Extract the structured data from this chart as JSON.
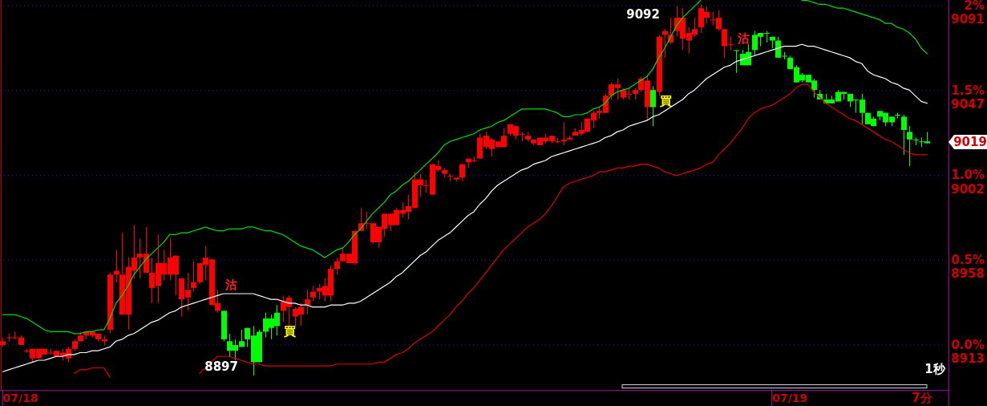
{
  "chart_data": {
    "type": "candlestick",
    "categories": [
      null,
      null,
      null,
      "07/18",
      null,
      null,
      null,
      null,
      null,
      null,
      null,
      null,
      null,
      null,
      null,
      null,
      null,
      null,
      null,
      null,
      null,
      null,
      null,
      null,
      null,
      null,
      null,
      null,
      null,
      null,
      null,
      null,
      null,
      null,
      null,
      null,
      null,
      null,
      null,
      null,
      null,
      null,
      null,
      null,
      null,
      null,
      null,
      null,
      null,
      null,
      null,
      null,
      null,
      null,
      null,
      null,
      null,
      null,
      null,
      null,
      null,
      null,
      null,
      null,
      null,
      null,
      null,
      null,
      null,
      null,
      null,
      null,
      null,
      null,
      null,
      null,
      null,
      null,
      null,
      null,
      null,
      null,
      null,
      null,
      null,
      null,
      null,
      null,
      null,
      null,
      null,
      null,
      null,
      null,
      null,
      null,
      null,
      null,
      null,
      null,
      null,
      null,
      null,
      null,
      null,
      null,
      null,
      null,
      null,
      null,
      null,
      null,
      null,
      null,
      null,
      null,
      null,
      null,
      null,
      null,
      null,
      null,
      null,
      null,
      null,
      null,
      null,
      null,
      null,
      null,
      null,
      null,
      "07/19",
      null,
      null,
      null,
      null,
      null,
      null,
      null,
      null,
      null,
      null,
      null,
      null,
      null,
      null,
      null,
      null,
      null,
      null,
      null,
      null,
      null,
      null,
      null
    ],
    "ohlc": [
      [
        8913,
        8917,
        8912,
        8915
      ],
      [
        8917,
        8919,
        8915,
        8917
      ],
      [
        8917,
        8920,
        8916,
        8917
      ],
      [
        8913,
        8918,
        8913,
        8917
      ],
      [
        8910,
        8911,
        8909,
        8910
      ],
      [
        8906,
        8911,
        8904,
        8911
      ],
      [
        8906,
        8911,
        8906,
        8911
      ],
      [
        8908,
        8911,
        8908,
        8911
      ],
      [
        8909,
        8911,
        8908,
        8909
      ],
      [
        8907,
        8910,
        8907,
        8910
      ],
      [
        8907,
        8911,
        8905,
        8909
      ],
      [
        8906,
        8912,
        8904,
        8911
      ],
      [
        8911,
        8916,
        8910,
        8915
      ],
      [
        8915,
        8920,
        8915,
        8918
      ],
      [
        8918,
        8920,
        8916,
        8920
      ],
      [
        8918,
        8920,
        8917,
        8920
      ],
      [
        8916,
        8919,
        8915,
        8919
      ],
      [
        8915,
        8918,
        8913,
        8916
      ],
      [
        8921,
        8951,
        8919,
        8950
      ],
      [
        8950,
        8963,
        8946,
        8952
      ],
      [
        8929,
        8972,
        8929,
        8950
      ],
      [
        8929,
        8959,
        8921,
        8954
      ],
      [
        8952,
        8976,
        8948,
        8959
      ],
      [
        8959,
        8969,
        8948,
        8961
      ],
      [
        8951,
        8975,
        8951,
        8961
      ],
      [
        8943,
        8959,
        8935,
        8951
      ],
      [
        8944,
        8971,
        8935,
        8956
      ],
      [
        8950,
        8963,
        8947,
        8956
      ],
      [
        8950,
        8969,
        8947,
        8959
      ],
      [
        8950,
        8960,
        8939,
        8960
      ],
      [
        8937,
        8948,
        8928,
        8948
      ],
      [
        8938,
        8951,
        8931,
        8942
      ],
      [
        8943,
        8957,
        8941,
        8946
      ],
      [
        8946,
        8956,
        8945,
        8956
      ],
      [
        8955,
        8965,
        8947,
        8959
      ],
      [
        8934,
        8958,
        8934,
        8958
      ],
      [
        8931,
        8942,
        8930,
        8935
      ],
      [
        8931,
        8931,
        8915,
        8916
      ],
      [
        8915,
        8919,
        8907,
        8910
      ],
      [
        8913,
        8916,
        8905,
        8910
      ],
      [
        8915,
        8921,
        8912,
        8912
      ],
      [
        8922,
        8922,
        8912,
        8916
      ],
      [
        8918,
        8923,
        8897,
        8904
      ],
      [
        8920,
        8921,
        8904,
        8904
      ],
      [
        8927,
        8930,
        8917,
        8920
      ],
      [
        8927,
        8929,
        8916,
        8922
      ],
      [
        8930,
        8934,
        8918,
        8923
      ],
      [
        8931,
        8939,
        8925,
        8936
      ],
      [
        8933,
        8939,
        8923,
        8938
      ],
      [
        8928,
        8933,
        8923,
        8932
      ],
      [
        8929,
        8935,
        8923,
        8933
      ],
      [
        8934,
        8942,
        8929,
        8937
      ],
      [
        8938,
        8944,
        8936,
        8941
      ],
      [
        8941,
        8945,
        8937,
        8943
      ],
      [
        8939,
        8948,
        8936,
        8944
      ],
      [
        8939,
        8955,
        8936,
        8953
      ],
      [
        8953,
        8959,
        8950,
        8957
      ],
      [
        8957,
        8964,
        8957,
        8961
      ],
      [
        8956,
        8961,
        8956,
        8961
      ],
      [
        8956,
        8973,
        8955,
        8973
      ],
      [
        8973,
        8985,
        8973,
        8977
      ],
      [
        8977,
        8983,
        8974,
        8977
      ],
      [
        8967,
        8977,
        8966,
        8977
      ],
      [
        8967,
        8975,
        8964,
        8975
      ],
      [
        8974,
        8982,
        8970,
        8982
      ],
      [
        8976,
        8982,
        8973,
        8982
      ],
      [
        8976,
        8985,
        8976,
        8984
      ],
      [
        8982,
        8988,
        8980,
        8984
      ],
      [
        8983,
        8992,
        8979,
        8986
      ],
      [
        8985,
        9004,
        8985,
        9000
      ],
      [
        8997,
        9003,
        8991,
        9000
      ],
      [
        8997,
        9000,
        8993,
        8997
      ],
      [
        8992,
        9008,
        8992,
        9008
      ],
      [
        9005,
        9010,
        9004,
        9007
      ],
      [
        9003,
        9006,
        9001,
        9005
      ],
      [
        9002,
        9003,
        8999,
        9002
      ],
      [
        9000,
        9001,
        8999,
        9001
      ],
      [
        9001,
        9008,
        8999,
        9008
      ],
      [
        9009,
        9011,
        9006,
        9011
      ],
      [
        9010,
        9012,
        9009,
        9010
      ],
      [
        9011,
        9024,
        9011,
        9022
      ],
      [
        9017,
        9025,
        9016,
        9023
      ],
      [
        9016,
        9022,
        9012,
        9021
      ],
      [
        9017,
        9020,
        9017,
        9020
      ],
      [
        9017,
        9027,
        9017,
        9023
      ],
      [
        9024,
        9029,
        9023,
        9029
      ],
      [
        9023,
        9028,
        9021,
        9028
      ],
      [
        9024,
        9025,
        9020,
        9024
      ],
      [
        9021,
        9025,
        9020,
        9023
      ],
      [
        9019,
        9021,
        9018,
        9021
      ],
      [
        9018,
        9022,
        9018,
        9022
      ],
      [
        9020,
        9024,
        9019,
        9022
      ],
      [
        9020,
        9023,
        9019,
        9023
      ],
      [
        9020,
        9022,
        9019,
        9020
      ],
      [
        9020,
        9030,
        9018,
        9021
      ],
      [
        9021,
        9023,
        9021,
        9022
      ],
      [
        9023,
        9027,
        9023,
        9025
      ],
      [
        9024,
        9030,
        9023,
        9026
      ],
      [
        9025,
        9032,
        9025,
        9032
      ],
      [
        9031,
        9036,
        9027,
        9035
      ],
      [
        9035,
        9038,
        9032,
        9036
      ],
      [
        9035,
        9045,
        9035,
        9044
      ],
      [
        9044,
        9051,
        9042,
        9050
      ],
      [
        9048,
        9053,
        9042,
        9050
      ],
      [
        9043,
        9048,
        9042,
        9047
      ],
      [
        9045,
        9048,
        9042,
        9045
      ],
      [
        9045,
        9048,
        9042,
        9047
      ],
      [
        9047,
        9054,
        9046,
        9053
      ],
      [
        9038,
        9055,
        9031,
        9052
      ],
      [
        9047,
        9049,
        9028,
        9038
      ],
      [
        9046,
        9076,
        9044,
        9075
      ],
      [
        9076,
        9079,
        9064,
        9078
      ],
      [
        9072,
        9085,
        9071,
        9076
      ],
      [
        9078,
        9091,
        9075,
        9085
      ],
      [
        9074,
        9090,
        9068,
        9085
      ],
      [
        9073,
        9080,
        9066,
        9077
      ],
      [
        9076,
        9085,
        9075,
        9079
      ],
      [
        9080,
        9092,
        9077,
        9090
      ],
      [
        9085,
        9091,
        9082,
        9088
      ],
      [
        9084,
        9088,
        9081,
        9084
      ],
      [
        9079,
        9089,
        9078,
        9085
      ],
      [
        9070,
        9079,
        9064,
        9079
      ],
      [
        9071,
        9075,
        9068,
        9071
      ],
      [
        9068,
        9068,
        9056,
        9068
      ],
      [
        9066,
        9068,
        9060,
        9060
      ],
      [
        9067,
        9071,
        9060,
        9060
      ],
      [
        9076,
        9078,
        9065,
        9068
      ],
      [
        9077,
        9077,
        9070,
        9075
      ],
      [
        9077,
        9078,
        9072,
        9077
      ],
      [
        9075,
        9075,
        9069,
        9073
      ],
      [
        9073,
        9075,
        9064,
        9064
      ],
      [
        9065,
        9067,
        9063,
        9065
      ],
      [
        9064,
        9065,
        9058,
        9058
      ],
      [
        9059,
        9060,
        9051,
        9051
      ],
      [
        9055,
        9056,
        9051,
        9052
      ],
      [
        9055,
        9055,
        9051,
        9051
      ],
      [
        9052,
        9053,
        9043,
        9047
      ],
      [
        9045,
        9047,
        9042,
        9042
      ],
      [
        9042,
        9045,
        9040,
        9040
      ],
      [
        9042,
        9044,
        9040,
        9040
      ],
      [
        9046,
        9047,
        9041,
        9041
      ],
      [
        9046,
        9046,
        9042,
        9045
      ],
      [
        9045,
        9045,
        9038,
        9041
      ],
      [
        9042,
        9042,
        9035,
        9042
      ],
      [
        9042,
        9045,
        9029,
        9035
      ],
      [
        9035,
        9035,
        9029,
        9029
      ],
      [
        9032,
        9033,
        9028,
        9028
      ],
      [
        9036,
        9036,
        9031,
        9033
      ],
      [
        9035,
        9035,
        9028,
        9030
      ],
      [
        9033,
        9033,
        9028,
        9030
      ],
      [
        9034,
        9035,
        9032,
        9034
      ],
      [
        9033,
        9034,
        9013,
        9026
      ],
      [
        9025,
        9028,
        9007,
        9021
      ],
      [
        9021,
        9022,
        9018,
        9021
      ],
      [
        9020,
        9022,
        9017,
        9020
      ],
      [
        9020,
        9025,
        9019,
        9019
      ]
    ],
    "colors": [
      "#ff0000",
      "#ff0000",
      "#ff0000",
      "#ff0000",
      "#ff0000",
      "#ff0000",
      "#ff0000",
      "#ff0000",
      "#ff0000",
      "#ff0000",
      "#ff0000",
      "#ff0000",
      "#ff0000",
      "#ff0000",
      "#ff0000",
      "#ff0000",
      "#ff0000",
      "#ff0000",
      "#ff0000",
      "#ff0000",
      "#ff0000",
      "#ff0000",
      "#ff0000",
      "#ff0000",
      "#ff0000",
      "#ff0000",
      "#ff0000",
      "#ff0000",
      "#ff0000",
      "#ff0000",
      "#ff0000",
      "#ff0000",
      "#ff0000",
      "#ff0000",
      "#ff0000",
      "#ff0000",
      "#ff0000",
      "#00ff00",
      "#00ff00",
      "#00ff00",
      "#00ff00",
      "#00ff00",
      "#00ff00",
      "#00ff00",
      "#00ff00",
      "#00ff00",
      "#00ff00",
      "#ff0000",
      "#ff0000",
      "#ff0000",
      "#ff0000",
      "#ff0000",
      "#ff0000",
      "#ff0000",
      "#ff0000",
      "#ff0000",
      "#ff0000",
      "#ff0000",
      "#ff0000",
      "#ff0000",
      "#ff0000",
      "#ff0000",
      "#ff0000",
      "#ff0000",
      "#ff0000",
      "#ff0000",
      "#ff0000",
      "#ff0000",
      "#ff0000",
      "#ff0000",
      "#ff0000",
      "#ff0000",
      "#ff0000",
      "#ff0000",
      "#ff0000",
      "#ff0000",
      "#ff0000",
      "#ff0000",
      "#ff0000",
      "#ff0000",
      "#ff0000",
      "#ff0000",
      "#ff0000",
      "#ff0000",
      "#ff0000",
      "#ff0000",
      "#ff0000",
      "#ff0000",
      "#ff0000",
      "#ff0000",
      "#ff0000",
      "#ff0000",
      "#ff0000",
      "#ff0000",
      "#ff0000",
      "#ff0000",
      "#ff0000",
      "#ff0000",
      "#ff0000",
      "#ff0000",
      "#ff0000",
      "#ff0000",
      "#ff0000",
      "#ff0000",
      "#ff0000",
      "#ff0000",
      "#ff0000",
      "#ff0000",
      "#ff0000",
      "#00ff00",
      "#ff0000",
      "#ff0000",
      "#ff0000",
      "#ff0000",
      "#ff0000",
      "#ff0000",
      "#ff0000",
      "#ff0000",
      "#ff0000",
      "#ff0000",
      "#ff0000",
      "#ff0000",
      "#ff0000",
      "#00ff00",
      "#00ff00",
      "#00ff00",
      "#00ff00",
      "#00ff00",
      "#00ff00",
      "#00ff00",
      "#00ff00",
      "#00ff00",
      "#00ff00",
      "#00ff00",
      "#00ff00",
      "#00ff00",
      "#00ff00",
      "#00ff00",
      "#00ff00",
      "#00ff00",
      "#00ff00",
      "#00ff00",
      "#00ff00",
      "#00ff00",
      "#00ff00",
      "#00ff00",
      "#00ff00",
      "#00ff00",
      "#00ff00",
      "#00ff00",
      "#00ff00",
      "#00ff00",
      "#00ff00",
      "#00ff00",
      "#00ff00",
      "#00ff00"
    ],
    "series": [
      {
        "type": "line",
        "color": "#00e000",
        "values": [
          8929,
          8929,
          8929,
          8928,
          8927,
          8925,
          8923,
          8921,
          8920,
          8920,
          8920,
          8920,
          8919,
          8919,
          8920,
          8920,
          8921,
          8921,
          8927,
          8935,
          8939,
          8944,
          8950,
          8954,
          8958,
          8961,
          8964,
          8967,
          8971,
          8971,
          8972,
          8972,
          8973,
          8974,
          8975,
          8974,
          8973,
          8973,
          8974,
          8974,
          8974,
          8975,
          8975,
          8974,
          8973,
          8973,
          8972,
          8971,
          8969,
          8967,
          8965,
          8964,
          8963,
          8961,
          8959,
          8961,
          8963,
          8964,
          8967,
          8971,
          8974,
          8978,
          8982,
          8985,
          8988,
          8992,
          8994,
          8997,
          8999,
          9002,
          9005,
          9008,
          9011,
          9014,
          9018,
          9020,
          9021,
          9022,
          9023,
          9024,
          9026,
          9027,
          9028,
          9030,
          9031,
          9033,
          9035,
          9037,
          9037,
          9037,
          9037,
          9037,
          9036,
          9035,
          9033,
          9033,
          9034,
          9034,
          9035,
          9037,
          9038,
          9040,
          9044,
          9046,
          9047,
          9048,
          9050,
          9052,
          9054,
          9058,
          9064,
          9069,
          9075,
          9081,
          9085,
          9088,
          9091,
          9094,
          null,
          null,
          null,
          null,
          null,
          null,
          null,
          null,
          null,
          null,
          null,
          null,
          null,
          null,
          null,
          null,
          9094,
          9094,
          9093,
          9092,
          9092,
          9091,
          9090,
          9090,
          9089,
          9088,
          9087,
          9086,
          9085,
          9084,
          9082,
          9082,
          9080,
          9079,
          9077,
          9074,
          9069,
          9066
        ]
      },
      {
        "type": "line",
        "color": "#ffffff",
        "values": [
          8899,
          8900,
          8901,
          8902,
          8903,
          8904,
          8905,
          8905,
          8906,
          8907,
          8907,
          8908,
          8908,
          8909,
          8909,
          8910,
          8910,
          8911,
          8912,
          8915,
          8916,
          8918,
          8919,
          8921,
          8923,
          8925,
          8926,
          8928,
          8930,
          8931,
          8933,
          8934,
          8935,
          8936,
          8937,
          8938,
          8939,
          8940,
          8940,
          8940,
          8940,
          8940,
          8940,
          8939,
          8938,
          8937,
          8937,
          8936,
          8935,
          8935,
          8934,
          8934,
          8933,
          8933,
          8933,
          8934,
          8934,
          8934,
          8935,
          8935,
          8936,
          8938,
          8940,
          8942,
          8944,
          8946,
          8949,
          8951,
          8954,
          8957,
          8960,
          8962,
          8965,
          8968,
          8970,
          8972,
          8975,
          8978,
          8981,
          8983,
          8987,
          8990,
          8994,
          8997,
          8999,
          9001,
          9003,
          9005,
          9006,
          9008,
          9009,
          9010,
          9012,
          9013,
          9014,
          9015,
          9016,
          9017,
          9018,
          9019,
          9020,
          9022,
          9023,
          9025,
          9026,
          9028,
          9029,
          9030,
          9031,
          9033,
          9034,
          9036,
          9038,
          9040,
          9042,
          9045,
          9047,
          9050,
          9053,
          9055,
          9057,
          9059,
          9060,
          9062,
          9063,
          9064,
          9065,
          9066,
          9067,
          9068,
          9069,
          9070,
          9070,
          9070,
          9071,
          9070,
          9070,
          9069,
          9068,
          9067,
          9066,
          9065,
          9064,
          9062,
          9061,
          9057,
          9055,
          9054,
          9053,
          9051,
          9050,
          9048,
          9047,
          9044,
          9041,
          9040
        ]
      },
      {
        "type": "line",
        "color": "#e00000",
        "values": [
          null,
          null,
          null,
          null,
          null,
          null,
          null,
          null,
          null,
          null,
          null,
          null,
          8898,
          8900,
          8900,
          8901,
          8901,
          8901,
          8896,
          null,
          null,
          null,
          null,
          null,
          null,
          null,
          null,
          null,
          null,
          null,
          null,
          null,
          null,
          8898,
          8901,
          8904,
          8907,
          8907,
          8907,
          8906,
          8905,
          8904,
          8903,
          8903,
          8902,
          8902,
          8902,
          8902,
          8902,
          8902,
          8902,
          8902,
          8902,
          8902,
          8902,
          8902,
          8903,
          8903,
          8903,
          8903,
          8903,
          8903,
          8903,
          8904,
          8904,
          8906,
          8908,
          8909,
          8911,
          8914,
          8916,
          8918,
          8920,
          8923,
          8926,
          8929,
          8933,
          8936,
          8940,
          8943,
          8947,
          8951,
          8955,
          8959,
          8963,
          8966,
          8969,
          8972,
          8975,
          8977,
          8979,
          8982,
          8986,
          8991,
          8996,
          8998,
          8999,
          9000,
          9001,
          9002,
          9004,
          9004,
          9005,
          9006,
          9006,
          9007,
          9007,
          9008,
          9008,
          9007,
          9006,
          9004,
          9003,
          9002,
          9003,
          9004,
          9005,
          9006,
          9008,
          9009,
          9013,
          9016,
          9019,
          9023,
          9027,
          9032,
          9035,
          9037,
          9038,
          9039,
          9041,
          9043,
          9045,
          9048,
          9050,
          9050,
          9046,
          9043,
          9040,
          9038,
          9036,
          9034,
          9032,
          9031,
          9029,
          9027,
          9025,
          9023,
          9021,
          9020,
          9018,
          9016,
          9014,
          9013,
          9013,
          9013
        ]
      }
    ],
    "ylim": [
      8889.4,
      9094.3
    ],
    "yticks": [
      {
        "value": 8913,
        "label": "8913"
      },
      {
        "value": 8957.6,
        "label": "8958"
      },
      {
        "value": 9002.1,
        "label": "9002"
      },
      {
        "value": 9046.7,
        "label": "9047"
      },
      {
        "value": 9091.3,
        "label": "9091"
      }
    ],
    "y2lim": [
      -0.2648,
      2.033
    ],
    "y2ticks": [
      {
        "value": 0,
        "label": "0.0%"
      },
      {
        "value": 0.5,
        "label": "0.5%"
      },
      {
        "value": 1,
        "label": "1.0%"
      },
      {
        "value": 1.5,
        "label": "1.5%"
      },
      {
        "value": 2,
        "label": "2%"
      }
    ],
    "grid": "y",
    "annotations": [
      "9092",
      "8897",
      "9019",
      "沽",
      "買",
      "買",
      "沽",
      "1秒",
      "7分"
    ]
  }
}
